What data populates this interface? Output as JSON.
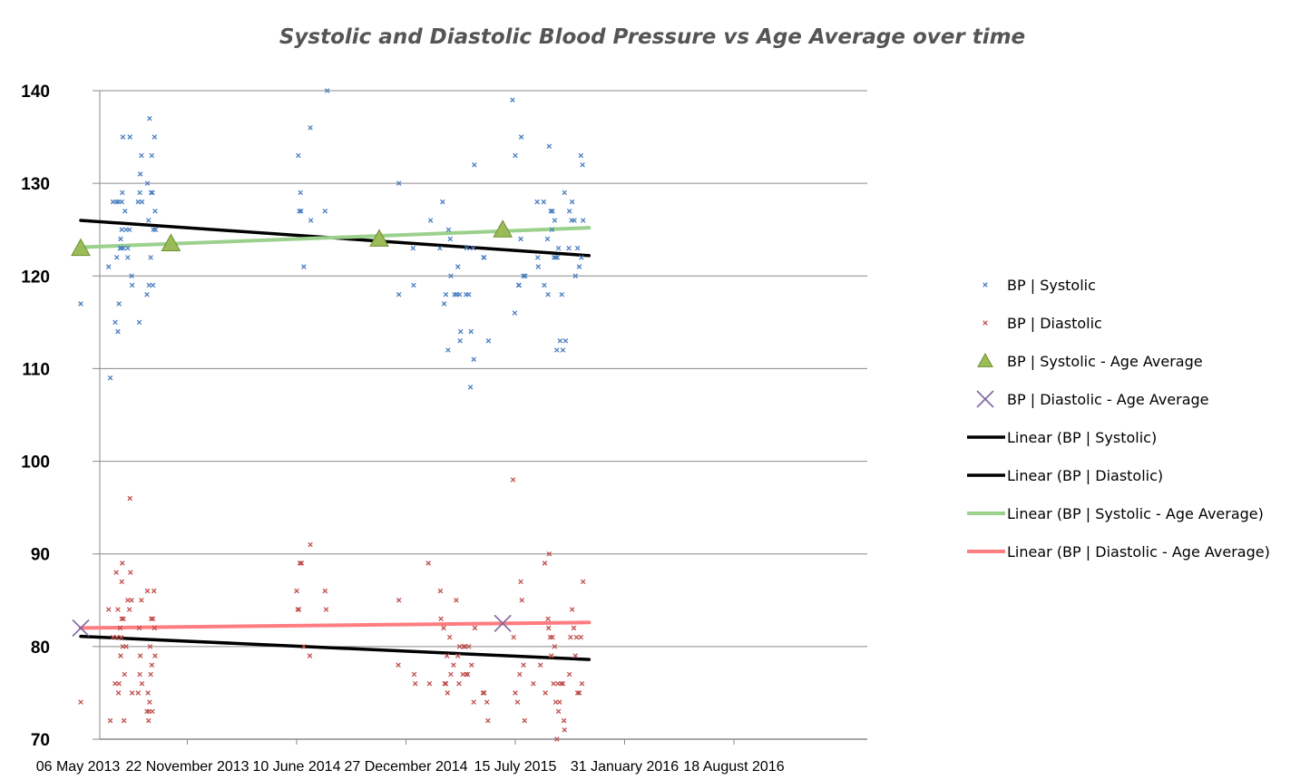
{
  "chart_data": {
    "type": "scatter",
    "title": "Systolic and Diastolic Blood Pressure vs Age Average over time",
    "xlabel": "",
    "ylabel": "",
    "ylim": [
      70,
      140
    ],
    "yticks": [
      70,
      80,
      90,
      100,
      110,
      120,
      130,
      140
    ],
    "grid": true,
    "legend_position": "right",
    "x_ticks": [
      {
        "label": "06 May 2013",
        "day": 0
      },
      {
        "label": "22 November 2013",
        "day": 200
      },
      {
        "label": "10 June 2014",
        "day": 400
      },
      {
        "label": "27 December 2014",
        "day": 600
      },
      {
        "label": "15 July 2015",
        "day": 800
      },
      {
        "label": "31 January 2016",
        "day": 1000
      },
      {
        "label": "18 August 2016",
        "day": 1200
      }
    ],
    "colors": {
      "systolic": "#4a7fc1",
      "diastolic": "#c0504d",
      "systolic_avg": "#9bbb59",
      "diastolic_avg": "#8064a2",
      "trend_black": "#000000",
      "trend_green": "#9bd18d",
      "trend_red": "#ff7c80",
      "grid": "#8a8a8a"
    },
    "series": [
      {
        "name": "BP | Systolic",
        "marker": "x-small",
        "points": [
          [
            5,
            117
          ],
          [
            56,
            121
          ],
          [
            59,
            109
          ],
          [
            64,
            128
          ],
          [
            68,
            115
          ],
          [
            70,
            128
          ],
          [
            71,
            122
          ],
          [
            73,
            114
          ],
          [
            74,
            128
          ],
          [
            75,
            117
          ],
          [
            77,
            123
          ],
          [
            78,
            124
          ],
          [
            79,
            123
          ],
          [
            80,
            125
          ],
          [
            80,
            128
          ],
          [
            81,
            129
          ],
          [
            82,
            135
          ],
          [
            83,
            123
          ],
          [
            86,
            127
          ],
          [
            88,
            125
          ],
          [
            91,
            123
          ],
          [
            91,
            122
          ],
          [
            94,
            125
          ],
          [
            95,
            135
          ],
          [
            98,
            120
          ],
          [
            99,
            119
          ],
          [
            110,
            128
          ],
          [
            112,
            115
          ],
          [
            113,
            129
          ],
          [
            114,
            131
          ],
          [
            116,
            133
          ],
          [
            117,
            128
          ],
          [
            126,
            118
          ],
          [
            127,
            130
          ],
          [
            129,
            126
          ],
          [
            130,
            119
          ],
          [
            131,
            137
          ],
          [
            133,
            122
          ],
          [
            134,
            129
          ],
          [
            135,
            133
          ],
          [
            136,
            129
          ],
          [
            137,
            119
          ],
          [
            138,
            125
          ],
          [
            140,
            135
          ],
          [
            141,
            127
          ],
          [
            142,
            125
          ],
          [
            403,
            133
          ],
          [
            405,
            127
          ],
          [
            407,
            129
          ],
          [
            408,
            127
          ],
          [
            413,
            121
          ],
          [
            425,
            136
          ],
          [
            426,
            126
          ],
          [
            452,
            127
          ],
          [
            456,
            140
          ],
          [
            587,
            130
          ],
          [
            587,
            118
          ],
          [
            613,
            123
          ],
          [
            614,
            119
          ],
          [
            645,
            126
          ],
          [
            662,
            123
          ],
          [
            667,
            128
          ],
          [
            670,
            117
          ],
          [
            673,
            118
          ],
          [
            677,
            112
          ],
          [
            678,
            125
          ],
          [
            681,
            124
          ],
          [
            682,
            120
          ],
          [
            689,
            118
          ],
          [
            693,
            118
          ],
          [
            695,
            121
          ],
          [
            698,
            118
          ],
          [
            699,
            113
          ],
          [
            700,
            114
          ],
          [
            710,
            118
          ],
          [
            711,
            123
          ],
          [
            715,
            118
          ],
          [
            718,
            108
          ],
          [
            719,
            114
          ],
          [
            723,
            123
          ],
          [
            724,
            111
          ],
          [
            725,
            132
          ],
          [
            742,
            122
          ],
          [
            743,
            122
          ],
          [
            751,
            113
          ],
          [
            795,
            139
          ],
          [
            799,
            116
          ],
          [
            800,
            133
          ],
          [
            806,
            119
          ],
          [
            807,
            119
          ],
          [
            810,
            124
          ],
          [
            811,
            135
          ],
          [
            815,
            120
          ],
          [
            818,
            120
          ],
          [
            840,
            128
          ],
          [
            841,
            122
          ],
          [
            842,
            121
          ],
          [
            852,
            128
          ],
          [
            853,
            119
          ],
          [
            859,
            124
          ],
          [
            860,
            118
          ],
          [
            862,
            134
          ],
          [
            865,
            127
          ],
          [
            867,
            125
          ],
          [
            868,
            127
          ],
          [
            871,
            122
          ],
          [
            872,
            126
          ],
          [
            874,
            122
          ],
          [
            876,
            112
          ],
          [
            877,
            122
          ],
          [
            879,
            123
          ],
          [
            882,
            113
          ],
          [
            885,
            118
          ],
          [
            887,
            112
          ],
          [
            890,
            129
          ],
          [
            892,
            113
          ],
          [
            898,
            123
          ],
          [
            899,
            127
          ],
          [
            903,
            126
          ],
          [
            904,
            128
          ],
          [
            908,
            126
          ],
          [
            910,
            120
          ],
          [
            914,
            123
          ],
          [
            917,
            121
          ],
          [
            920,
            133
          ],
          [
            921,
            122
          ],
          [
            923,
            132
          ],
          [
            924,
            126
          ]
        ]
      },
      {
        "name": "BP | Diastolic",
        "marker": "x-small",
        "points": [
          [
            5,
            74
          ],
          [
            56,
            84
          ],
          [
            59,
            72
          ],
          [
            64,
            81
          ],
          [
            68,
            76
          ],
          [
            70,
            88
          ],
          [
            71,
            81
          ],
          [
            73,
            84
          ],
          [
            74,
            75
          ],
          [
            75,
            76
          ],
          [
            77,
            82
          ],
          [
            78,
            79
          ],
          [
            79,
            81
          ],
          [
            80,
            87
          ],
          [
            80,
            83
          ],
          [
            81,
            89
          ],
          [
            82,
            80
          ],
          [
            83,
            83
          ],
          [
            84,
            72
          ],
          [
            85,
            77
          ],
          [
            88,
            80
          ],
          [
            91,
            85
          ],
          [
            94,
            84
          ],
          [
            95,
            96
          ],
          [
            96,
            88
          ],
          [
            98,
            85
          ],
          [
            99,
            75
          ],
          [
            110,
            75
          ],
          [
            112,
            82
          ],
          [
            113,
            77
          ],
          [
            114,
            79
          ],
          [
            116,
            85
          ],
          [
            117,
            76
          ],
          [
            126,
            73
          ],
          [
            127,
            86
          ],
          [
            128,
            75
          ],
          [
            129,
            72
          ],
          [
            130,
            73
          ],
          [
            131,
            74
          ],
          [
            132,
            80
          ],
          [
            133,
            77
          ],
          [
            134,
            83
          ],
          [
            135,
            78
          ],
          [
            136,
            73
          ],
          [
            137,
            83
          ],
          [
            139,
            86
          ],
          [
            140,
            82
          ],
          [
            141,
            79
          ],
          [
            400,
            86
          ],
          [
            402,
            84
          ],
          [
            404,
            84
          ],
          [
            406,
            89
          ],
          [
            409,
            89
          ],
          [
            413,
            80
          ],
          [
            424,
            79
          ],
          [
            425,
            91
          ],
          [
            452,
            86
          ],
          [
            454,
            84
          ],
          [
            586,
            78
          ],
          [
            587,
            85
          ],
          [
            615,
            77
          ],
          [
            617,
            76
          ],
          [
            641,
            89
          ],
          [
            643,
            76
          ],
          [
            663,
            86
          ],
          [
            664,
            83
          ],
          [
            669,
            82
          ],
          [
            671,
            76
          ],
          [
            673,
            76
          ],
          [
            675,
            79
          ],
          [
            676,
            75
          ],
          [
            680,
            81
          ],
          [
            682,
            77
          ],
          [
            687,
            78
          ],
          [
            692,
            85
          ],
          [
            695,
            79
          ],
          [
            697,
            76
          ],
          [
            698,
            80
          ],
          [
            704,
            77
          ],
          [
            706,
            80
          ],
          [
            708,
            80
          ],
          [
            710,
            77
          ],
          [
            713,
            77
          ],
          [
            715,
            80
          ],
          [
            720,
            78
          ],
          [
            724,
            74
          ],
          [
            726,
            82
          ],
          [
            741,
            75
          ],
          [
            743,
            75
          ],
          [
            748,
            74
          ],
          [
            750,
            72
          ],
          [
            796,
            98
          ],
          [
            797,
            81
          ],
          [
            800,
            75
          ],
          [
            804,
            74
          ],
          [
            808,
            77
          ],
          [
            810,
            87
          ],
          [
            812,
            85
          ],
          [
            815,
            78
          ],
          [
            817,
            72
          ],
          [
            833,
            76
          ],
          [
            846,
            78
          ],
          [
            854,
            89
          ],
          [
            855,
            75
          ],
          [
            860,
            83
          ],
          [
            861,
            82
          ],
          [
            862,
            90
          ],
          [
            864,
            81
          ],
          [
            866,
            79
          ],
          [
            868,
            81
          ],
          [
            870,
            76
          ],
          [
            872,
            80
          ],
          [
            874,
            74
          ],
          [
            876,
            70
          ],
          [
            878,
            76
          ],
          [
            879,
            73
          ],
          [
            881,
            74
          ],
          [
            884,
            76
          ],
          [
            887,
            76
          ],
          [
            889,
            72
          ],
          [
            890,
            71
          ],
          [
            899,
            77
          ],
          [
            901,
            81
          ],
          [
            904,
            84
          ],
          [
            907,
            82
          ],
          [
            910,
            79
          ],
          [
            912,
            81
          ],
          [
            914,
            75
          ],
          [
            917,
            75
          ],
          [
            920,
            81
          ],
          [
            922,
            76
          ],
          [
            924,
            87
          ]
        ]
      },
      {
        "name": "BP | Systolic - Age Average",
        "marker": "triangle",
        "points": [
          [
            5,
            123
          ],
          [
            170,
            123.5
          ],
          [
            551,
            124
          ],
          [
            777,
            125
          ]
        ]
      },
      {
        "name": "BP | Diastolic - Age Average",
        "marker": "x-large",
        "points": [
          [
            5,
            82
          ],
          [
            777,
            82.5
          ]
        ]
      },
      {
        "name": "Linear (BP | Systolic)",
        "type": "line",
        "points": [
          [
            5,
            126
          ],
          [
            935,
            122.2
          ]
        ]
      },
      {
        "name": "Linear (BP | Diastolic)",
        "type": "line",
        "points": [
          [
            5,
            81.1
          ],
          [
            935,
            78.6
          ]
        ]
      },
      {
        "name": "Linear (BP | Systolic - Age Average)",
        "type": "line",
        "points": [
          [
            5,
            123.1
          ],
          [
            935,
            125.2
          ]
        ]
      },
      {
        "name": "Linear (BP | Diastolic - Age Average)",
        "type": "line",
        "points": [
          [
            5,
            82
          ],
          [
            935,
            82.6
          ]
        ]
      }
    ]
  }
}
